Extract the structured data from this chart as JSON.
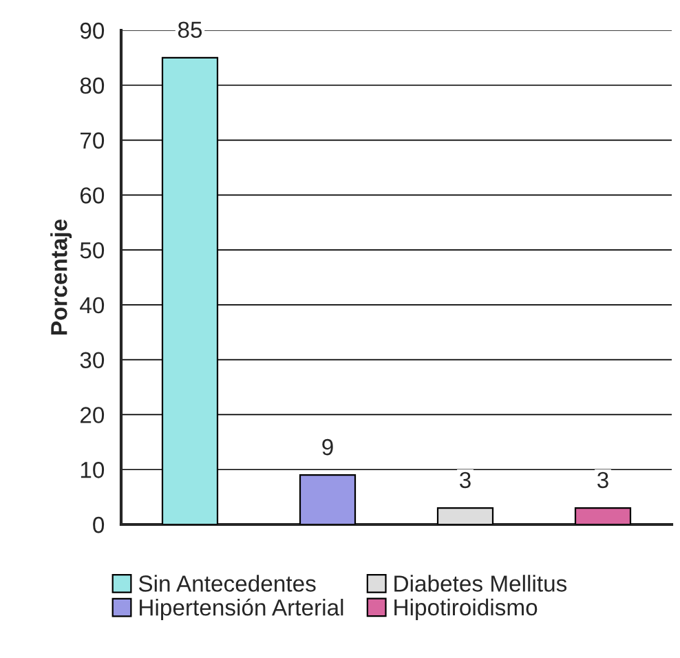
{
  "chart_data": {
    "type": "bar",
    "ylabel": "Porcentaje",
    "categories": [
      null,
      null,
      null,
      null
    ],
    "series": [
      {
        "name": "Sin Antecedentes",
        "color": "#99e6e6",
        "values": [
          85,
          null,
          null,
          null
        ]
      },
      {
        "name": "Hipertensión Arterial",
        "color": "#9999e6",
        "values": [
          null,
          9,
          null,
          null
        ]
      },
      {
        "name": "Diabetes Mellitus",
        "color": "#dddddd",
        "values": [
          null,
          null,
          3,
          null
        ]
      },
      {
        "name": "Hipotiroidismo",
        "color": "#d9669f",
        "values": [
          null,
          null,
          null,
          3
        ]
      }
    ],
    "ylim": [
      0,
      90
    ],
    "yticks": [
      0,
      10,
      20,
      30,
      40,
      50,
      60,
      70,
      80,
      90
    ],
    "grid": "y",
    "legend": "bottom",
    "data_labels": true
  }
}
